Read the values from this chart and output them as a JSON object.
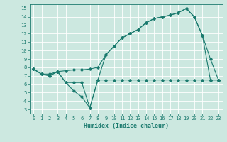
{
  "title": "",
  "xlabel": "Humidex (Indice chaleur)",
  "xlim": [
    -0.5,
    23.5
  ],
  "ylim": [
    2.5,
    15.5
  ],
  "xticks": [
    0,
    1,
    2,
    3,
    4,
    5,
    6,
    7,
    8,
    9,
    10,
    11,
    12,
    13,
    14,
    15,
    16,
    17,
    18,
    19,
    20,
    21,
    22,
    23
  ],
  "yticks": [
    3,
    4,
    5,
    6,
    7,
    8,
    9,
    10,
    11,
    12,
    13,
    14,
    15
  ],
  "bg_color": "#cce8e0",
  "grid_color": "#ffffff",
  "line_color": "#1a7a6e",
  "line1_x": [
    0,
    1,
    2,
    3,
    4,
    5,
    6,
    7,
    8,
    9,
    10,
    11,
    12,
    13,
    14,
    15,
    16,
    17,
    18,
    19,
    20,
    21,
    22,
    23
  ],
  "line1_y": [
    7.8,
    7.2,
    7.2,
    7.5,
    7.6,
    7.7,
    7.7,
    7.8,
    8.0,
    9.5,
    10.5,
    11.5,
    12.0,
    12.5,
    13.3,
    13.8,
    14.0,
    14.2,
    14.5,
    15.0,
    14.0,
    11.8,
    9.0,
    6.5
  ],
  "line2_x": [
    0,
    1,
    2,
    3,
    4,
    5,
    6,
    7,
    8,
    9,
    10,
    11,
    12,
    13,
    14,
    15,
    16,
    17,
    18,
    19,
    20,
    21,
    22,
    23
  ],
  "line2_y": [
    7.8,
    7.2,
    7.0,
    7.5,
    6.2,
    5.2,
    4.5,
    3.2,
    6.5,
    6.5,
    6.5,
    6.5,
    6.5,
    6.5,
    6.5,
    6.5,
    6.5,
    6.5,
    6.5,
    6.5,
    6.5,
    6.5,
    6.5,
    6.5
  ],
  "line3_x": [
    0,
    1,
    2,
    3,
    4,
    5,
    6,
    7,
    8,
    9,
    10,
    11,
    12,
    13,
    14,
    15,
    16,
    17,
    18,
    19,
    20,
    21,
    22,
    23
  ],
  "line3_y": [
    7.8,
    7.2,
    7.0,
    7.5,
    6.2,
    6.2,
    6.2,
    3.2,
    6.5,
    9.5,
    10.5,
    11.5,
    12.0,
    12.5,
    13.3,
    13.8,
    14.0,
    14.2,
    14.5,
    15.0,
    14.0,
    11.8,
    6.5,
    6.5
  ]
}
